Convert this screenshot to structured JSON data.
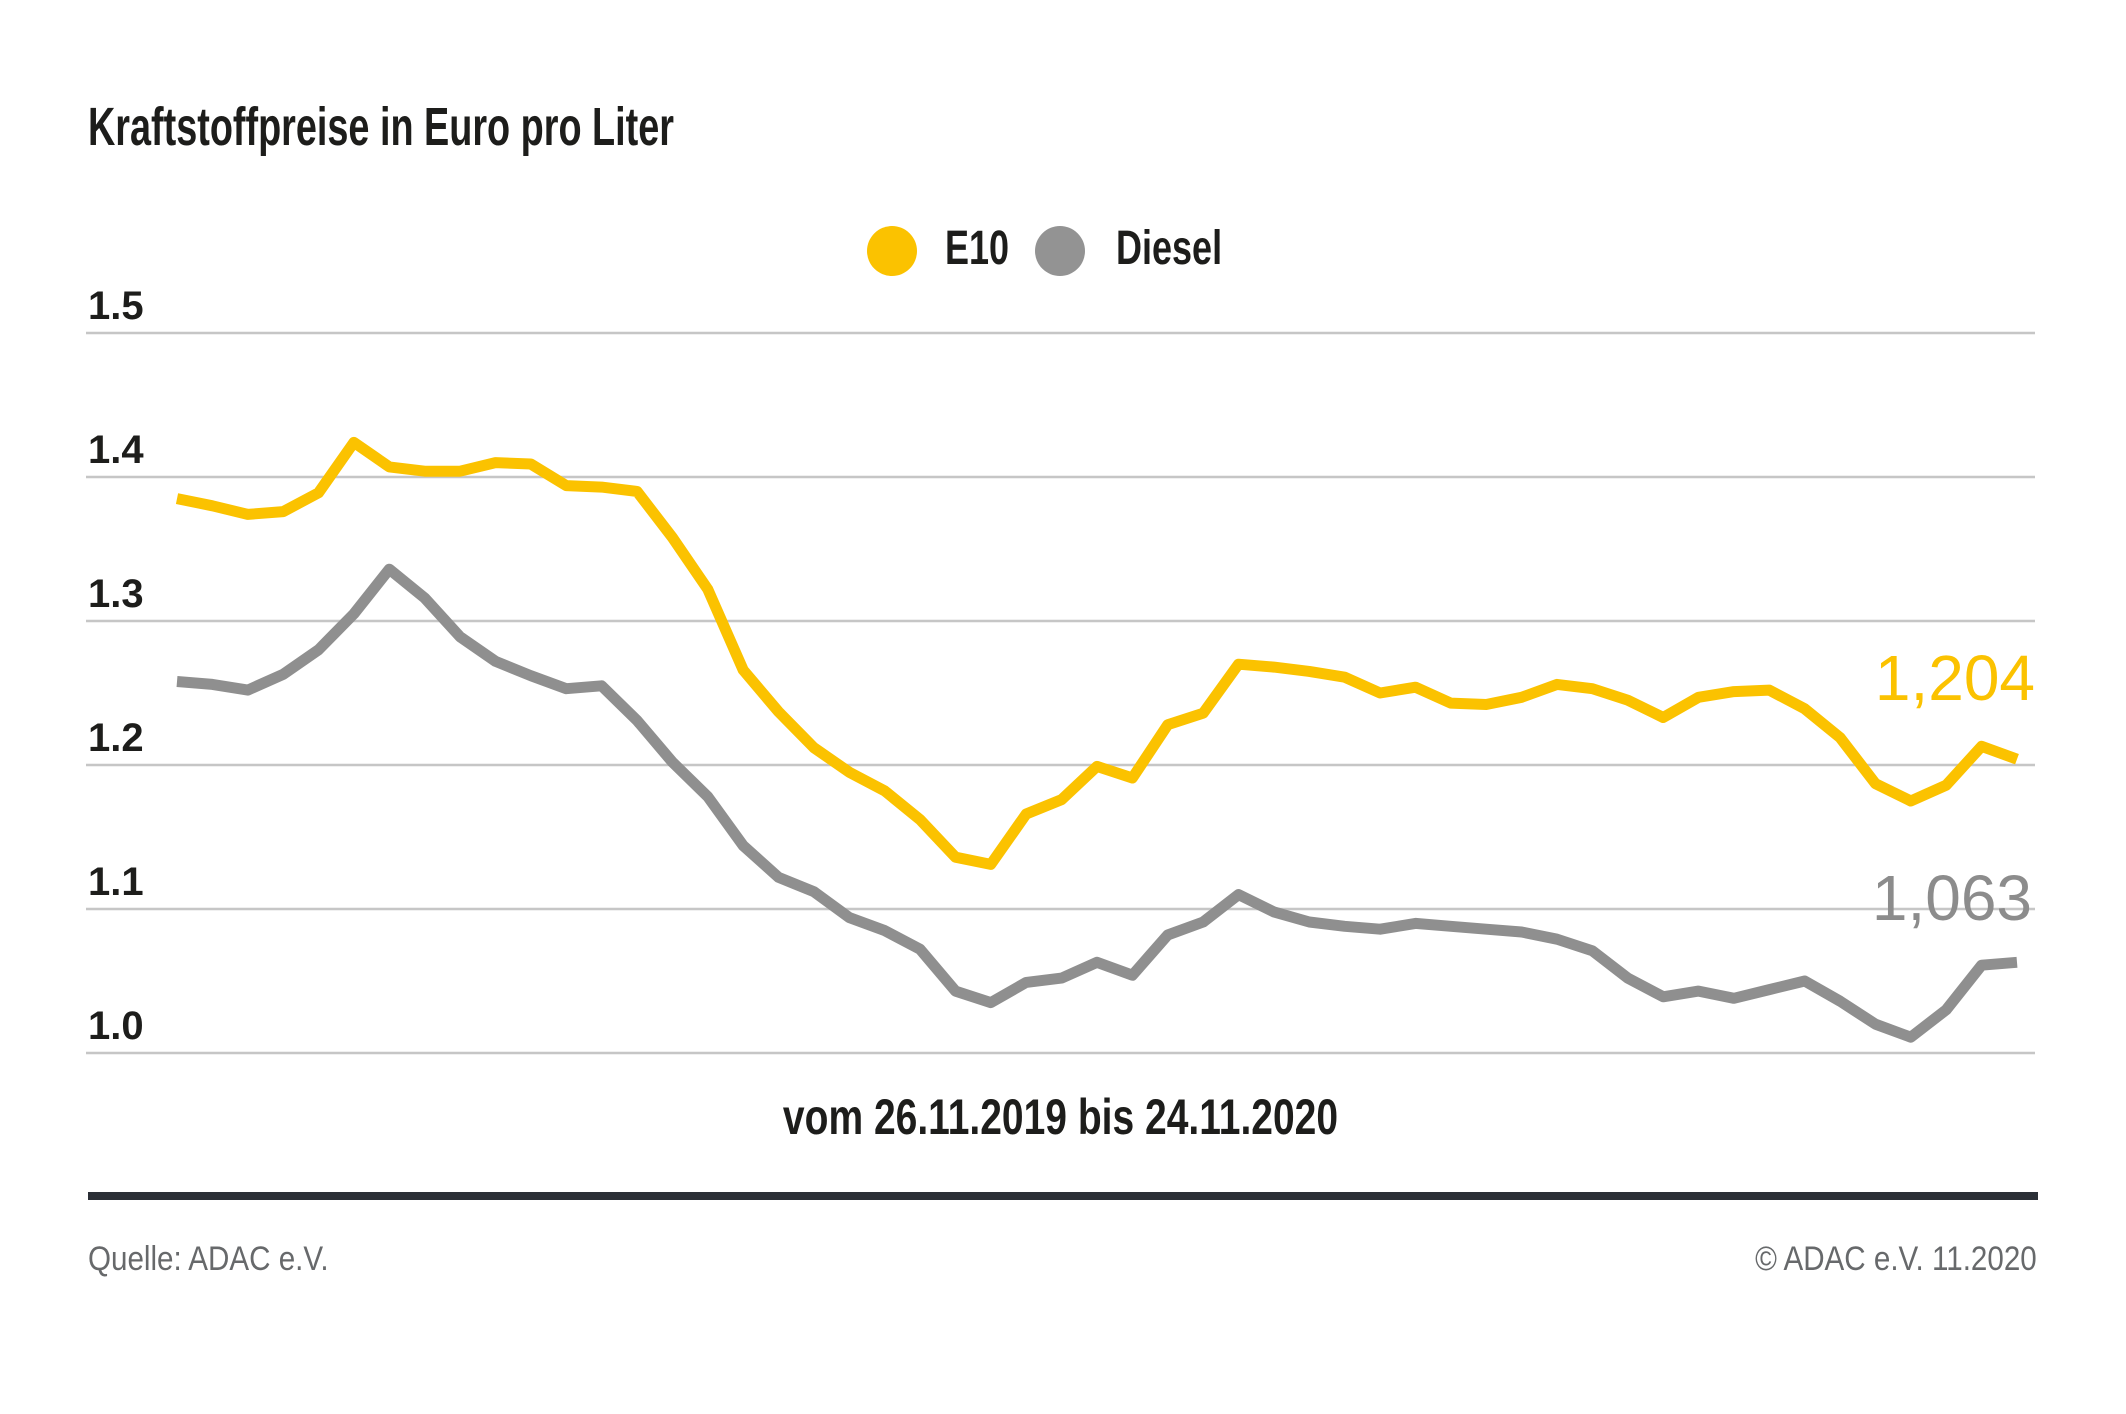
{
  "title": "Kraftstoffpreise in Euro pro Liter",
  "legend": [
    {
      "label": "E10",
      "color": "#fbc200",
      "icon": "circle"
    },
    {
      "label": "Diesel",
      "color": "#939393",
      "icon": "circle"
    }
  ],
  "colors": {
    "e10": "#fbc200",
    "diesel_line": "#8f8f8f",
    "diesel_label": "#8c8c8c",
    "gridline": "#c6c6c6",
    "text_dark": "#1d1d1b",
    "footer_gray": "#67696b",
    "divider_dark": "#2b2f36"
  },
  "chart_data": {
    "type": "line",
    "title": "Kraftstoffpreise in Euro pro Liter",
    "xlabel": "vom 26.11.2019 bis 24.11.2020",
    "ylabel": "Euro pro Liter",
    "x_start": "26.11.2019",
    "x_end": "24.11.2020",
    "x_interval": "weekly",
    "n_points": 53,
    "ylim": [
      1.0,
      1.5
    ],
    "yticks": [
      "1.5",
      "1.4",
      "1.3",
      "1.2",
      "1.1",
      "1.0"
    ],
    "grid": true,
    "legend_position": "top-center",
    "series": [
      {
        "name": "E10",
        "color": "#fbc200",
        "end_label": "1,204",
        "end_value": 1.204,
        "values": [
          1.385,
          1.38,
          1.374,
          1.376,
          1.389,
          1.424,
          1.407,
          1.404,
          1.404,
          1.41,
          1.409,
          1.394,
          1.393,
          1.39,
          1.358,
          1.322,
          1.266,
          1.237,
          1.212,
          1.195,
          1.182,
          1.162,
          1.136,
          1.131,
          1.166,
          1.176,
          1.199,
          1.191,
          1.228,
          1.236,
          1.27,
          1.268,
          1.265,
          1.261,
          1.25,
          1.254,
          1.243,
          1.242,
          1.247,
          1.256,
          1.253,
          1.245,
          1.233,
          1.247,
          1.251,
          1.252,
          1.239,
          1.219,
          1.187,
          1.175,
          1.186,
          1.213,
          1.204
        ]
      },
      {
        "name": "Diesel",
        "color": "#8f8f8f",
        "end_label": "1,063",
        "end_value": 1.063,
        "values": [
          1.258,
          1.256,
          1.252,
          1.263,
          1.28,
          1.305,
          1.336,
          1.316,
          1.289,
          1.272,
          1.262,
          1.253,
          1.255,
          1.231,
          1.202,
          1.178,
          1.144,
          1.122,
          1.112,
          1.094,
          1.085,
          1.072,
          1.043,
          1.035,
          1.049,
          1.052,
          1.063,
          1.054,
          1.082,
          1.091,
          1.11,
          1.098,
          1.091,
          1.088,
          1.086,
          1.09,
          1.088,
          1.086,
          1.084,
          1.079,
          1.071,
          1.052,
          1.039,
          1.043,
          1.038,
          1.044,
          1.05,
          1.036,
          1.02,
          1.011,
          1.03,
          1.061,
          1.063
        ]
      }
    ]
  },
  "value_labels": {
    "e10": "1,204",
    "diesel": "1,063"
  },
  "x_axis_label": "vom 26.11.2019 bis 24.11.2020",
  "footer": {
    "source": "Quelle: ADAC e.V.",
    "copyright": "© ADAC e.V. 11.2020"
  }
}
